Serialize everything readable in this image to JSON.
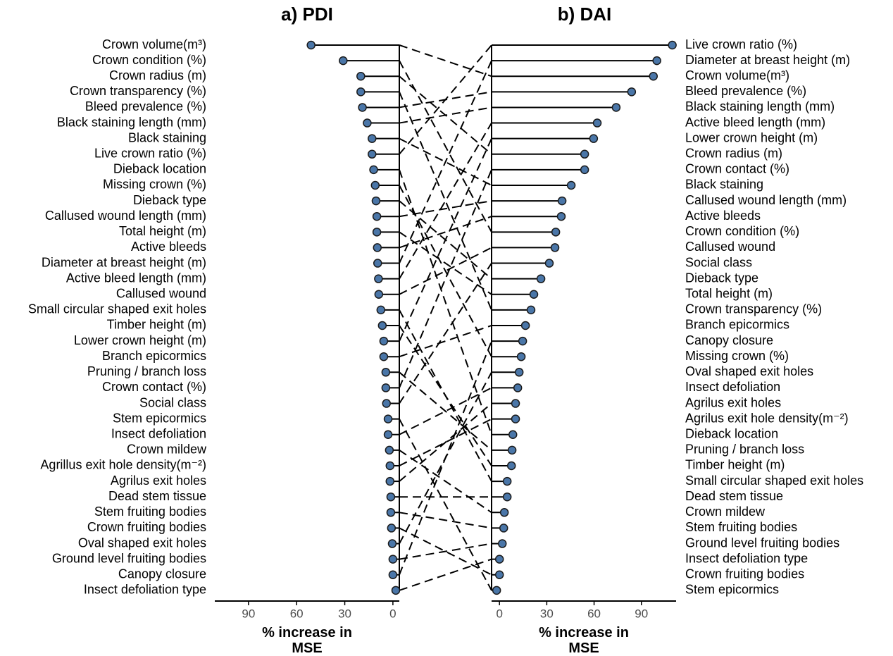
{
  "chart_data": [
    {
      "type": "lollipop",
      "title": "a) PDI",
      "xlabel": "% increase in MSE",
      "color": "#4a76a8",
      "xlim": [
        111,
        -4
      ],
      "xticks": [
        90,
        60,
        30,
        0
      ],
      "categories": [
        "Crown volume(m³)",
        "Crown condition (%)",
        "Crown radius (m)",
        "Crown transparency (%)",
        "Bleed prevalence (%)",
        "Black staining length (mm)",
        "Black staining",
        "Live crown ratio (%)",
        "Dieback location",
        "Missing crown (%)",
        "Dieback type",
        "Callused wound length (mm)",
        "Total height (m)",
        "Active bleeds",
        "Diameter at breast height (m)",
        "Active bleed length (mm)",
        "Callused wound",
        "Small circular shaped exit holes",
        "Timber height (m)",
        "Lower crown height (m)",
        "Branch epicormics",
        "Pruning / branch loss",
        "Crown contact (%)",
        "Social class",
        "Stem epicormics",
        "Insect defoliation",
        "Crown mildew",
        "Agrillus exit hole density(m⁻²)",
        "Agrilus exit holes",
        "Dead stem tissue",
        "Stem fruiting bodies",
        "Crown fruiting bodies",
        "Oval shaped exit holes",
        "Ground level fruiting bodies",
        "Canopy closure",
        "Insect defoliation type"
      ],
      "values": [
        51,
        31,
        20,
        20,
        19,
        16,
        13,
        13,
        12,
        11,
        10.5,
        10,
        10,
        9.7,
        9.5,
        9,
        8.8,
        7.5,
        6.6,
        5.7,
        5.7,
        4.4,
        4.4,
        4,
        3,
        3,
        2.2,
        1.8,
        1.8,
        1.3,
        1.3,
        0.9,
        0.4,
        0,
        0,
        -1.8
      ]
    },
    {
      "type": "lollipop",
      "title": "b) DAI",
      "xlabel": "% increase in MSE",
      "color": "#4a76a8",
      "xlim": [
        -5,
        112
      ],
      "xticks": [
        0,
        30,
        60,
        90
      ],
      "categories": [
        "Live crown ratio (%)",
        "Diameter at breast height (m)",
        "Crown volume(m³)",
        "Bleed prevalence (%)",
        "Black staining length (mm)",
        "Active bleed length (mm)",
        "Lower crown height (m)",
        "Crown radius (m)",
        "Crown contact (%)",
        "Black staining",
        "Callused wound length (mm)",
        "Active bleeds",
        "Crown condition (%)",
        "Callused wound",
        "Social class",
        "Dieback type",
        "Total height (m)",
        "Crown transparency (%)",
        "Branch epicormics",
        "Canopy closure",
        "Missing crown (%)",
        "Oval shaped exit holes",
        "Insect defoliation",
        "Agrilus exit holes",
        "Agrilus exit hole density(m⁻²)",
        "Dieback location",
        "Pruning / branch loss",
        "Timber height (m)",
        "Small circular shaped exit holes",
        "Dead stem tissue",
        "Crown mildew",
        "Stem fruiting bodies",
        "Ground level fruiting bodies",
        "Insect defoliation type",
        "Crown fruiting bodies",
        "Stem epicormics"
      ],
      "values": [
        109.6,
        99.8,
        97.6,
        83.8,
        74,
        62,
        59.7,
        54,
        54,
        45.5,
        39.7,
        39.2,
        35.7,
        35.2,
        31.6,
        26.3,
        21.8,
        20,
        16.5,
        14.7,
        13.8,
        12.5,
        11.6,
        10.2,
        10.2,
        8.5,
        8,
        7.6,
        4.9,
        4.9,
        3.1,
        2.7,
        1.8,
        0,
        0,
        -1.8
      ]
    }
  ]
}
